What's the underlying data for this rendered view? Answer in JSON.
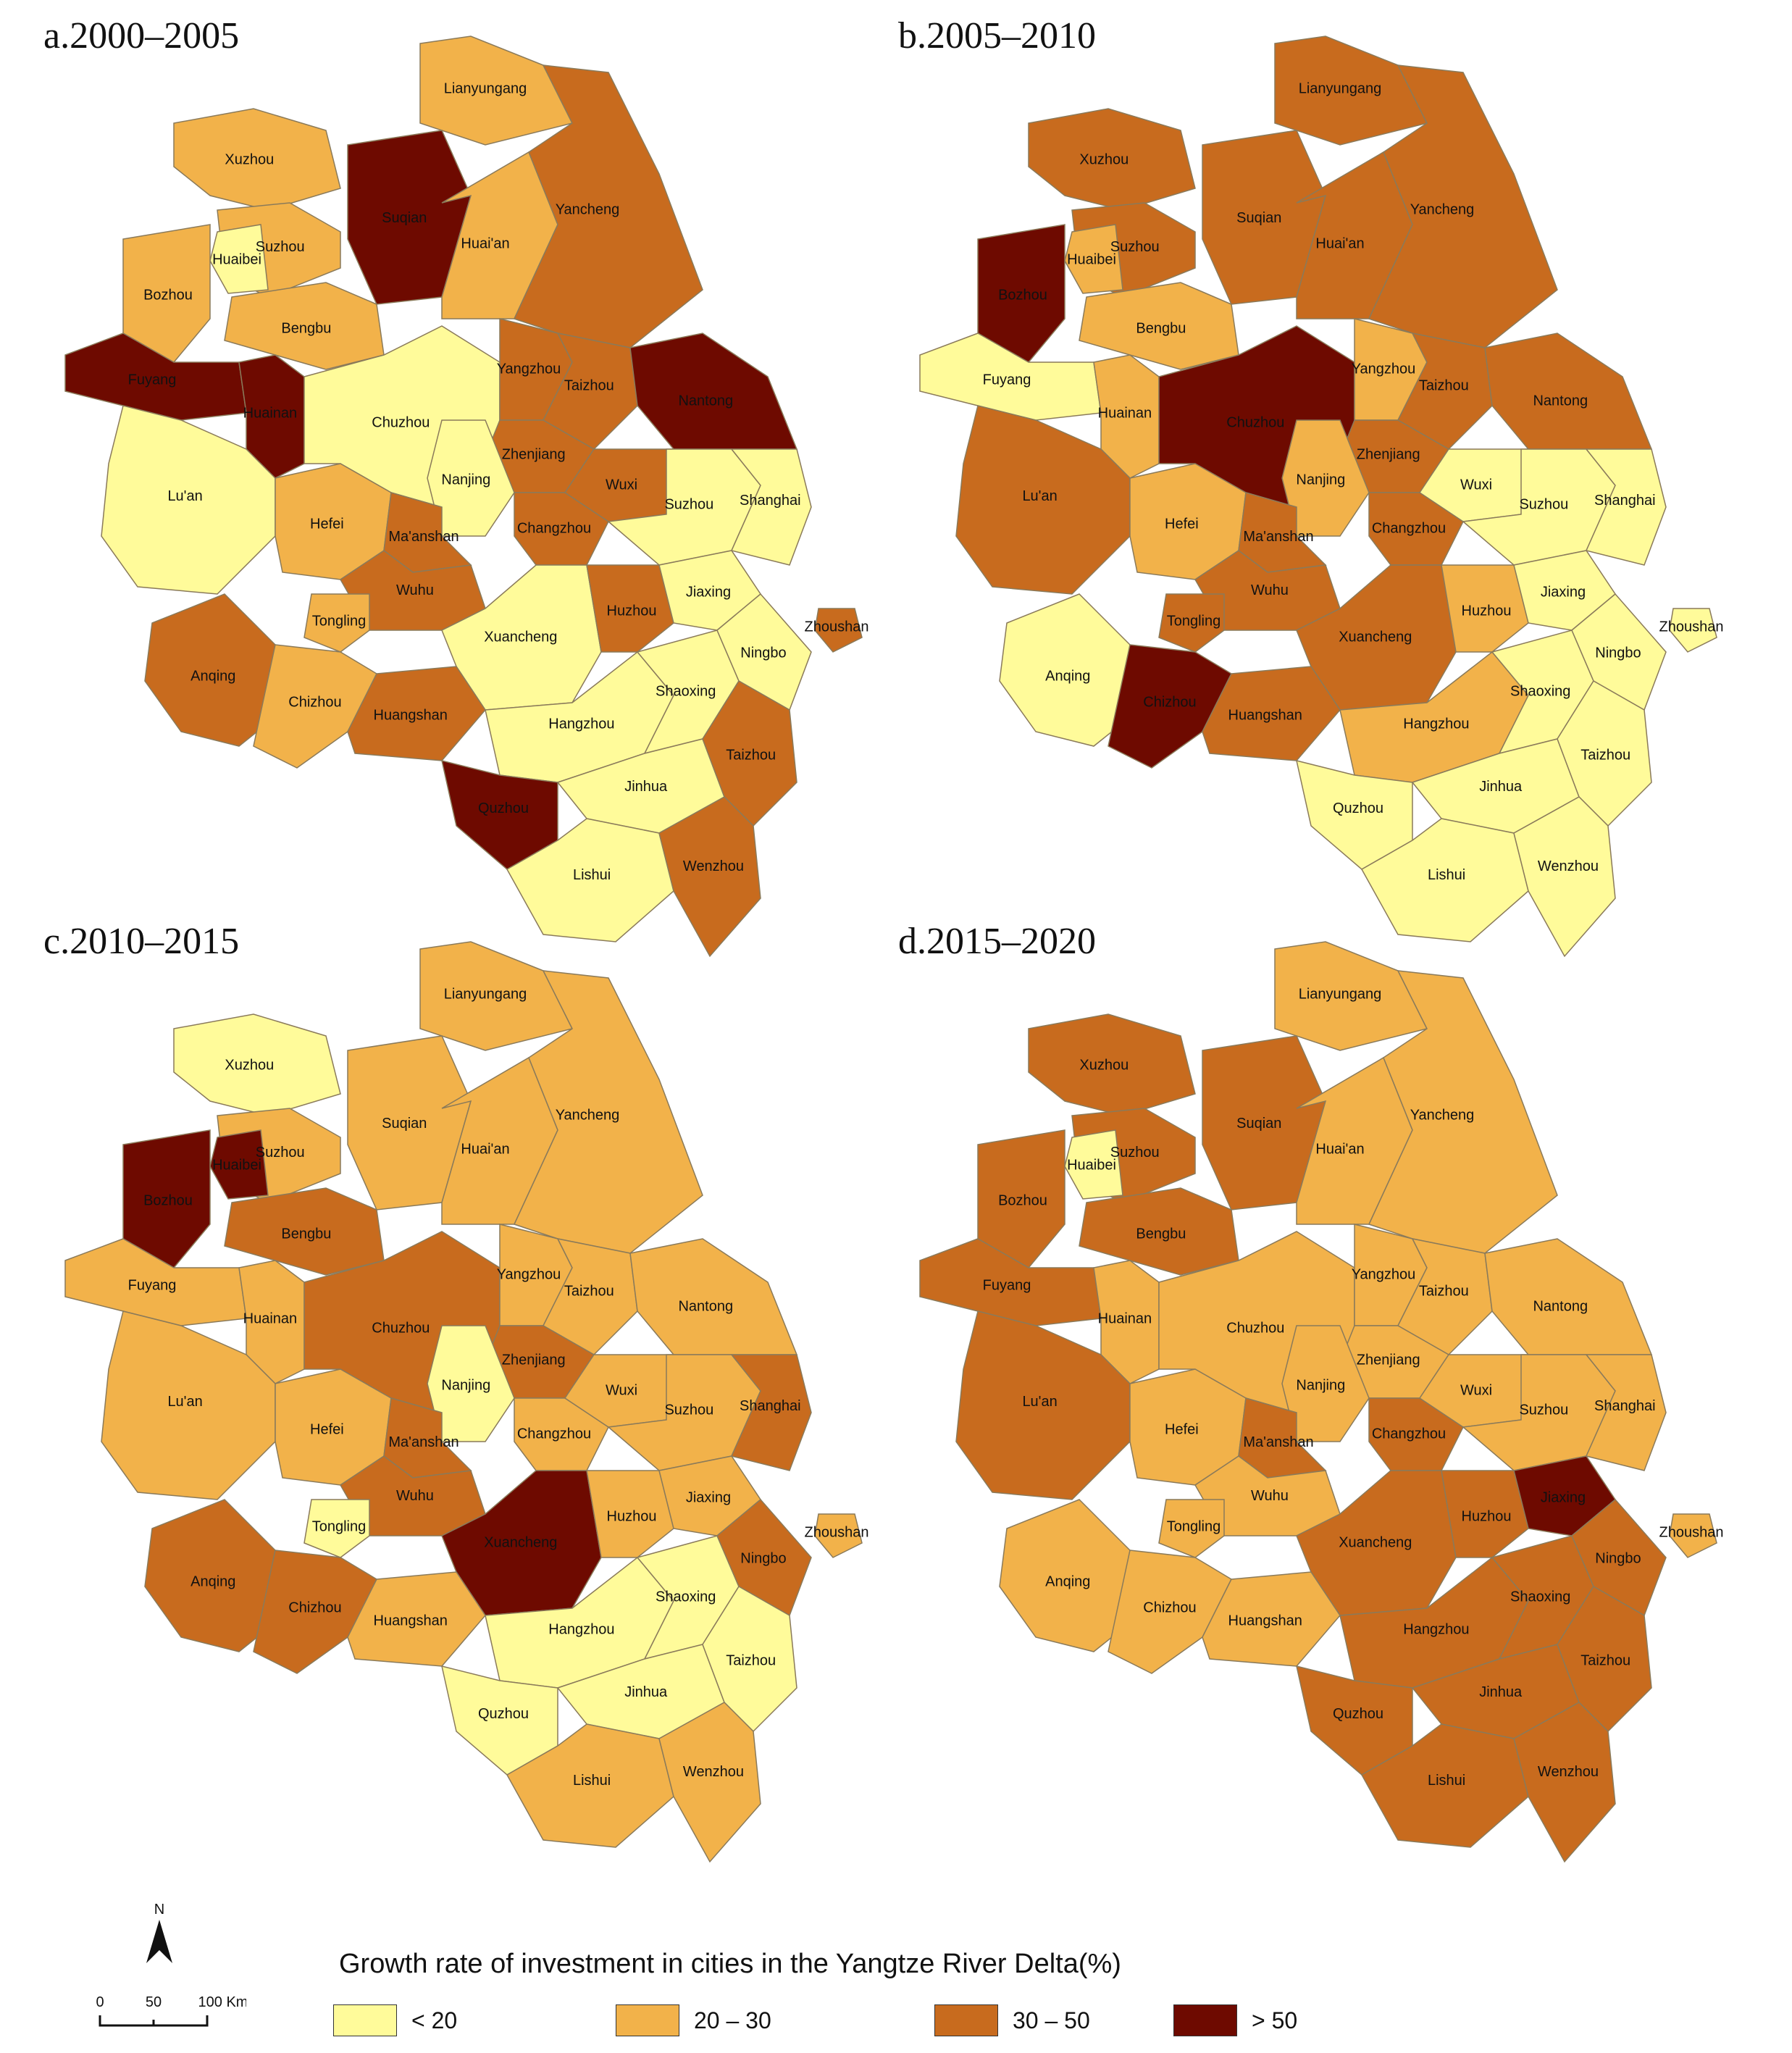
{
  "panels": [
    {
      "title": "a.2000–2005",
      "classes": {
        "Lianyungang": 1,
        "Xuzhou": 1,
        "Suqian": 3,
        "Huai'an": 1,
        "Yancheng": 2,
        "Suzhou_AH": 1,
        "Huaibei": 0,
        "Bozhou": 1,
        "Bengbu": 1,
        "Fuyang": 3,
        "Huainan": 3,
        "Chuzhou": 0,
        "Yangzhou": 2,
        "Taizhou_JS": 2,
        "Nantong": 3,
        "Zhenjiang": 2,
        "Nanjing": 0,
        "Changzhou": 2,
        "Wuxi": 2,
        "Lu'an": 0,
        "Hefei": 1,
        "Ma'anshan": 2,
        "Suzhou": 0,
        "Shanghai": 0,
        "Wuhu": 2,
        "Tongling": 1,
        "Xuancheng": 0,
        "Huzhou": 2,
        "Jiaxing": 0,
        "Anqing": 2,
        "Chizhou": 1,
        "Huangshan": 2,
        "Hangzhou": 0,
        "Shaoxing": 0,
        "Ningbo": 0,
        "Zhoushan": 2,
        "Jinhua": 0,
        "Quzhou": 3,
        "Taizhou_ZJ": 2,
        "Lishui": 0,
        "Wenzhou": 2
      }
    },
    {
      "title": "b.2005–2010",
      "classes": {
        "Lianyungang": 2,
        "Xuzhou": 2,
        "Suqian": 2,
        "Huai'an": 2,
        "Yancheng": 2,
        "Suzhou_AH": 2,
        "Huaibei": 1,
        "Bozhou": 3,
        "Bengbu": 1,
        "Fuyang": 0,
        "Huainan": 1,
        "Chuzhou": 3,
        "Yangzhou": 1,
        "Taizhou_JS": 2,
        "Nantong": 2,
        "Zhenjiang": 2,
        "Nanjing": 1,
        "Changzhou": 2,
        "Wuxi": 0,
        "Lu'an": 2,
        "Hefei": 1,
        "Ma'anshan": 2,
        "Suzhou": 0,
        "Shanghai": 0,
        "Wuhu": 2,
        "Tongling": 2,
        "Xuancheng": 2,
        "Huzhou": 1,
        "Jiaxing": 0,
        "Anqing": 0,
        "Chizhou": 3,
        "Huangshan": 2,
        "Hangzhou": 1,
        "Shaoxing": 0,
        "Ningbo": 0,
        "Zhoushan": 0,
        "Jinhua": 0,
        "Quzhou": 0,
        "Taizhou_ZJ": 0,
        "Lishui": 0,
        "Wenzhou": 0
      }
    },
    {
      "title": "c.2010–2015",
      "classes": {
        "Lianyungang": 1,
        "Xuzhou": 0,
        "Suqian": 1,
        "Huai'an": 1,
        "Yancheng": 1,
        "Suzhou_AH": 1,
        "Huaibei": 3,
        "Bozhou": 3,
        "Bengbu": 2,
        "Fuyang": 1,
        "Huainan": 1,
        "Chuzhou": 2,
        "Yangzhou": 1,
        "Taizhou_JS": 1,
        "Nantong": 1,
        "Zhenjiang": 2,
        "Nanjing": 0,
        "Changzhou": 1,
        "Wuxi": 1,
        "Lu'an": 1,
        "Hefei": 1,
        "Ma'anshan": 2,
        "Suzhou": 1,
        "Shanghai": 2,
        "Wuhu": 2,
        "Tongling": 0,
        "Xuancheng": 3,
        "Huzhou": 1,
        "Jiaxing": 1,
        "Anqing": 2,
        "Chizhou": 2,
        "Huangshan": 1,
        "Hangzhou": 0,
        "Shaoxing": 0,
        "Ningbo": 2,
        "Zhoushan": 1,
        "Jinhua": 0,
        "Quzhou": 0,
        "Taizhou_ZJ": 0,
        "Lishui": 1,
        "Wenzhou": 1
      }
    },
    {
      "title": "d.2015–2020",
      "classes": {
        "Lianyungang": 1,
        "Xuzhou": 2,
        "Suqian": 2,
        "Huai'an": 1,
        "Yancheng": 1,
        "Suzhou_AH": 2,
        "Huaibei": 0,
        "Bozhou": 2,
        "Bengbu": 2,
        "Fuyang": 2,
        "Huainan": 1,
        "Chuzhou": 1,
        "Yangzhou": 1,
        "Taizhou_JS": 1,
        "Nantong": 1,
        "Zhenjiang": 1,
        "Nanjing": 1,
        "Changzhou": 2,
        "Wuxi": 1,
        "Lu'an": 2,
        "Hefei": 1,
        "Ma'anshan": 2,
        "Suzhou": 1,
        "Shanghai": 1,
        "Wuhu": 1,
        "Tongling": 1,
        "Xuancheng": 2,
        "Huzhou": 2,
        "Jiaxing": 3,
        "Anqing": 1,
        "Chizhou": 1,
        "Huangshan": 1,
        "Hangzhou": 2,
        "Shaoxing": 2,
        "Ningbo": 2,
        "Zhoushan": 1,
        "Jinhua": 2,
        "Quzhou": 2,
        "Taizhou_ZJ": 2,
        "Lishui": 2,
        "Wenzhou": 2
      }
    }
  ],
  "city_labels": {
    "Lianyungang": "Lianyungang",
    "Xuzhou": "Xuzhou",
    "Suqian": "Suqian",
    "Huai'an": "Huai'an",
    "Yancheng": "Yancheng",
    "Suzhou_AH": "Suzhou",
    "Huaibei": "Huaibei",
    "Bozhou": "Bozhou",
    "Bengbu": "Bengbu",
    "Fuyang": "Fuyang",
    "Huainan": "Huainan",
    "Chuzhou": "Chuzhou",
    "Yangzhou": "Yangzhou",
    "Taizhou_JS": "Taizhou",
    "Nantong": "Nantong",
    "Zhenjiang": "Zhenjiang",
    "Nanjing": "Nanjing",
    "Changzhou": "Changzhou",
    "Wuxi": "Wuxi",
    "Lu'an": "Lu'an",
    "Hefei": "Hefei",
    "Ma'anshan": "Ma'anshan",
    "Suzhou": "Suzhou",
    "Shanghai": "Shanghai",
    "Wuhu": "Wuhu",
    "Tongling": "Tongling",
    "Xuancheng": "Xuancheng",
    "Huzhou": "Huzhou",
    "Jiaxing": "Jiaxing",
    "Anqing": "Anqing",
    "Chizhou": "Chizhou",
    "Huangshan": "Huangshan",
    "Hangzhou": "Hangzhou",
    "Shaoxing": "Shaoxing",
    "Ningbo": "Ningbo",
    "Zhoushan": "Zhoushan",
    "Jinhua": "Jinhua",
    "Quzhou": "Quzhou",
    "Taizhou_ZJ": "Taizhou",
    "Lishui": "Lishui",
    "Wenzhou": "Wenzhou"
  },
  "legend": {
    "title": "Growth rate of investment in cities in the Yangtze River Delta(%)",
    "items": [
      {
        "label": "< 20",
        "color": "#FFFB9A"
      },
      {
        "label": "20 – 30",
        "color": "#F2B24A"
      },
      {
        "label": "30 – 50",
        "color": "#C86B1E"
      },
      {
        "label": "> 50",
        "color": "#6E0A00"
      }
    ]
  },
  "scalebar": {
    "north": "N",
    "ticks": [
      "0",
      "50",
      "100 Km"
    ]
  }
}
